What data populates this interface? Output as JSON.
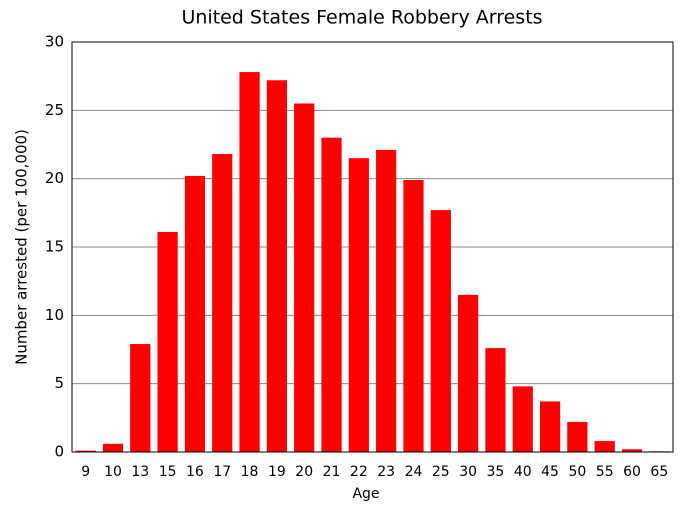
{
  "chart_data": {
    "type": "bar",
    "title": "United States Female Robbery Arrests",
    "x_label": "Age",
    "y_label": "Number arrested (per 100,000)",
    "categories": [
      "9",
      "10",
      "13",
      "15",
      "16",
      "17",
      "18",
      "19",
      "20",
      "21",
      "22",
      "23",
      "24",
      "25",
      "30",
      "35",
      "40",
      "45",
      "50",
      "55",
      "60",
      "65"
    ],
    "values": [
      0.1,
      0.6,
      7.9,
      16.1,
      20.2,
      21.8,
      27.8,
      27.2,
      25.5,
      23.0,
      21.5,
      22.1,
      19.9,
      17.7,
      11.5,
      7.6,
      4.8,
      3.7,
      2.2,
      0.8,
      0.2,
      0.05
    ],
    "color": "#ff0000",
    "ylim": [
      0,
      30
    ],
    "yticks": [
      0,
      5,
      10,
      15,
      20,
      25,
      30
    ],
    "grid": true
  }
}
